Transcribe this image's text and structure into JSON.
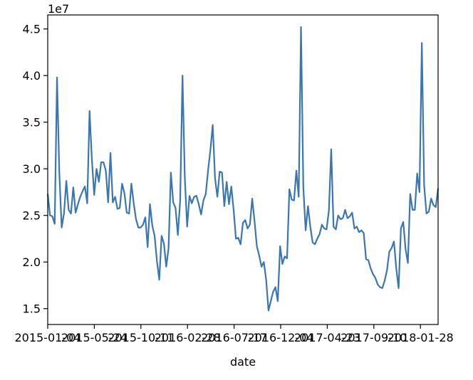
{
  "chart_data": {
    "type": "line",
    "xlabel": "date",
    "ylabel": "",
    "y_offset_label": "1e7",
    "ylim": [
      13300000,
      46500000
    ],
    "y_ticks": [
      15000000,
      20000000,
      25000000,
      30000000,
      35000000,
      40000000,
      45000000
    ],
    "y_tick_labels": [
      "1.5",
      "2.0",
      "2.5",
      "3.0",
      "3.5",
      "4.0",
      "4.5"
    ],
    "x_tick_labels": [
      "2015-01-04",
      "2015-05-24",
      "2015-10-11",
      "2016-02-28",
      "2016-07-17",
      "2016-12-04",
      "2017-04-23",
      "2017-09-10",
      "2018-01-28"
    ],
    "x_range": [
      0,
      168
    ],
    "series": [
      {
        "color": "#3a76af",
        "values": [
          27300000,
          25000000,
          24900000,
          24100000,
          39800000,
          29500000,
          23700000,
          25200000,
          28700000,
          25600000,
          25200000,
          28000000,
          25300000,
          26200000,
          27000000,
          27600000,
          28100000,
          26300000,
          36200000,
          31000000,
          27200000,
          30000000,
          28600000,
          30700000,
          30700000,
          29800000,
          26400000,
          31700000,
          26400000,
          27000000,
          25700000,
          25800000,
          28400000,
          27400000,
          25300000,
          25200000,
          28400000,
          26300000,
          24600000,
          23700000,
          23700000,
          24000000,
          24800000,
          21600000,
          26200000,
          23900000,
          22800000,
          20100000,
          18100000,
          22800000,
          22000000,
          19500000,
          21500000,
          29600000,
          26400000,
          25800000,
          22900000,
          26600000,
          40000000,
          29000000,
          23800000,
          27100000,
          26300000,
          27000000,
          27100000,
          26200000,
          25100000,
          26600000,
          27300000,
          29800000,
          32000000,
          34700000,
          29000000,
          27000000,
          29700000,
          29600000,
          26000000,
          28600000,
          26200000,
          28100000,
          25600000,
          22500000,
          22600000,
          21900000,
          24200000,
          24500000,
          23600000,
          24000000,
          26800000,
          24400000,
          21700000,
          20700000,
          19500000,
          20000000,
          18100000,
          14800000,
          15800000,
          16800000,
          17300000,
          15800000,
          21700000,
          19800000,
          20600000,
          20400000,
          27800000,
          26700000,
          26600000,
          29800000,
          27000000,
          45200000,
          28000000,
          23400000,
          26000000,
          23800000,
          22100000,
          21900000,
          22500000,
          23000000,
          24000000,
          23600000,
          23500000,
          25500000,
          32100000,
          23800000,
          23500000,
          25000000,
          24600000,
          24700000,
          25600000,
          24700000,
          24900000,
          25300000,
          23600000,
          23800000,
          23200000,
          23400000,
          23100000,
          20300000,
          20200000,
          19300000,
          18700000,
          18300000,
          17600000,
          17300000,
          17200000,
          18000000,
          19100000,
          21100000,
          21500000,
          22200000,
          19300000,
          17200000,
          23600000,
          24300000,
          21400000,
          19900000,
          27300000,
          25600000,
          25600000,
          29500000,
          27500000,
          43500000,
          28200000,
          25200000,
          25400000,
          26800000,
          26100000,
          25900000,
          27900000
        ]
      }
    ]
  }
}
